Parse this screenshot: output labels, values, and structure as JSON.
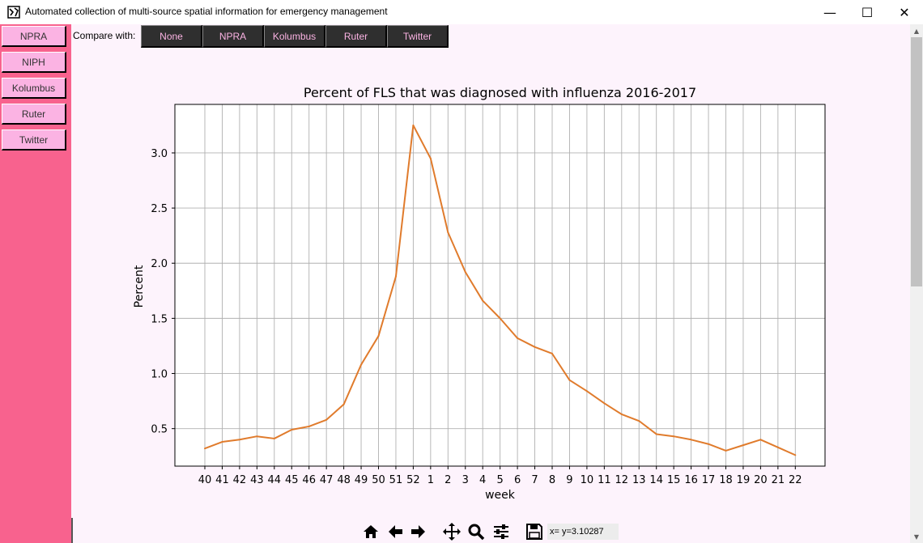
{
  "window": {
    "title": "Automated collection of multi-source spatial information for emergency management",
    "minimize_glyph": "—",
    "maximize_glyph": "☐",
    "close_glyph": "✕"
  },
  "sidebar": {
    "items": [
      {
        "label": "NPRA"
      },
      {
        "label": "NIPH"
      },
      {
        "label": "Kolumbus"
      },
      {
        "label": "Ruter"
      },
      {
        "label": "Twitter"
      }
    ]
  },
  "compare": {
    "label": "Compare with:",
    "buttons": [
      {
        "label": "None"
      },
      {
        "label": "NPRA"
      },
      {
        "label": "Kolumbus"
      },
      {
        "label": "Ruter"
      },
      {
        "label": "Twitter"
      }
    ]
  },
  "toolbar": {
    "icons": [
      "home-icon",
      "back-arrow-icon",
      "forward-arrow-icon",
      "pan-icon",
      "zoom-icon",
      "configure-subplots-icon",
      "save-icon"
    ],
    "coordinate_readout": "x= y=3.10287"
  },
  "colors": {
    "sidebar": "#f8628e",
    "sidebar_button": "#fbb3e3",
    "main_background": "#fdf3fc",
    "compare_button": "#2f2f2f",
    "line": "#e07b2c"
  },
  "chart_data": {
    "type": "line",
    "title": "Percent of FLS that was diagnosed with influenza 2016-2017",
    "xlabel": "week",
    "ylabel": "Percent",
    "grid": true,
    "categories": [
      "40",
      "41",
      "42",
      "43",
      "44",
      "45",
      "46",
      "47",
      "48",
      "49",
      "50",
      "51",
      "52",
      "1",
      "2",
      "3",
      "4",
      "5",
      "6",
      "7",
      "8",
      "9",
      "10",
      "11",
      "12",
      "13",
      "14",
      "15",
      "16",
      "17",
      "18",
      "19",
      "20",
      "21",
      "22"
    ],
    "values": [
      0.32,
      0.38,
      0.4,
      0.43,
      0.41,
      0.49,
      0.52,
      0.58,
      0.72,
      1.08,
      1.34,
      1.88,
      3.25,
      2.95,
      2.28,
      1.92,
      1.66,
      1.5,
      1.32,
      1.24,
      1.18,
      0.94,
      0.84,
      0.73,
      0.63,
      0.57,
      0.45,
      0.43,
      0.4,
      0.36,
      0.3,
      0.35,
      0.4,
      0.33,
      0.26
    ],
    "yticks": [
      0.5,
      1.0,
      1.5,
      2.0,
      2.5,
      3.0
    ],
    "ytick_labels": [
      "0.5",
      "1.0",
      "1.5",
      "2.0",
      "2.5",
      "3.0"
    ],
    "ylim": [
      0.16,
      3.44
    ]
  }
}
